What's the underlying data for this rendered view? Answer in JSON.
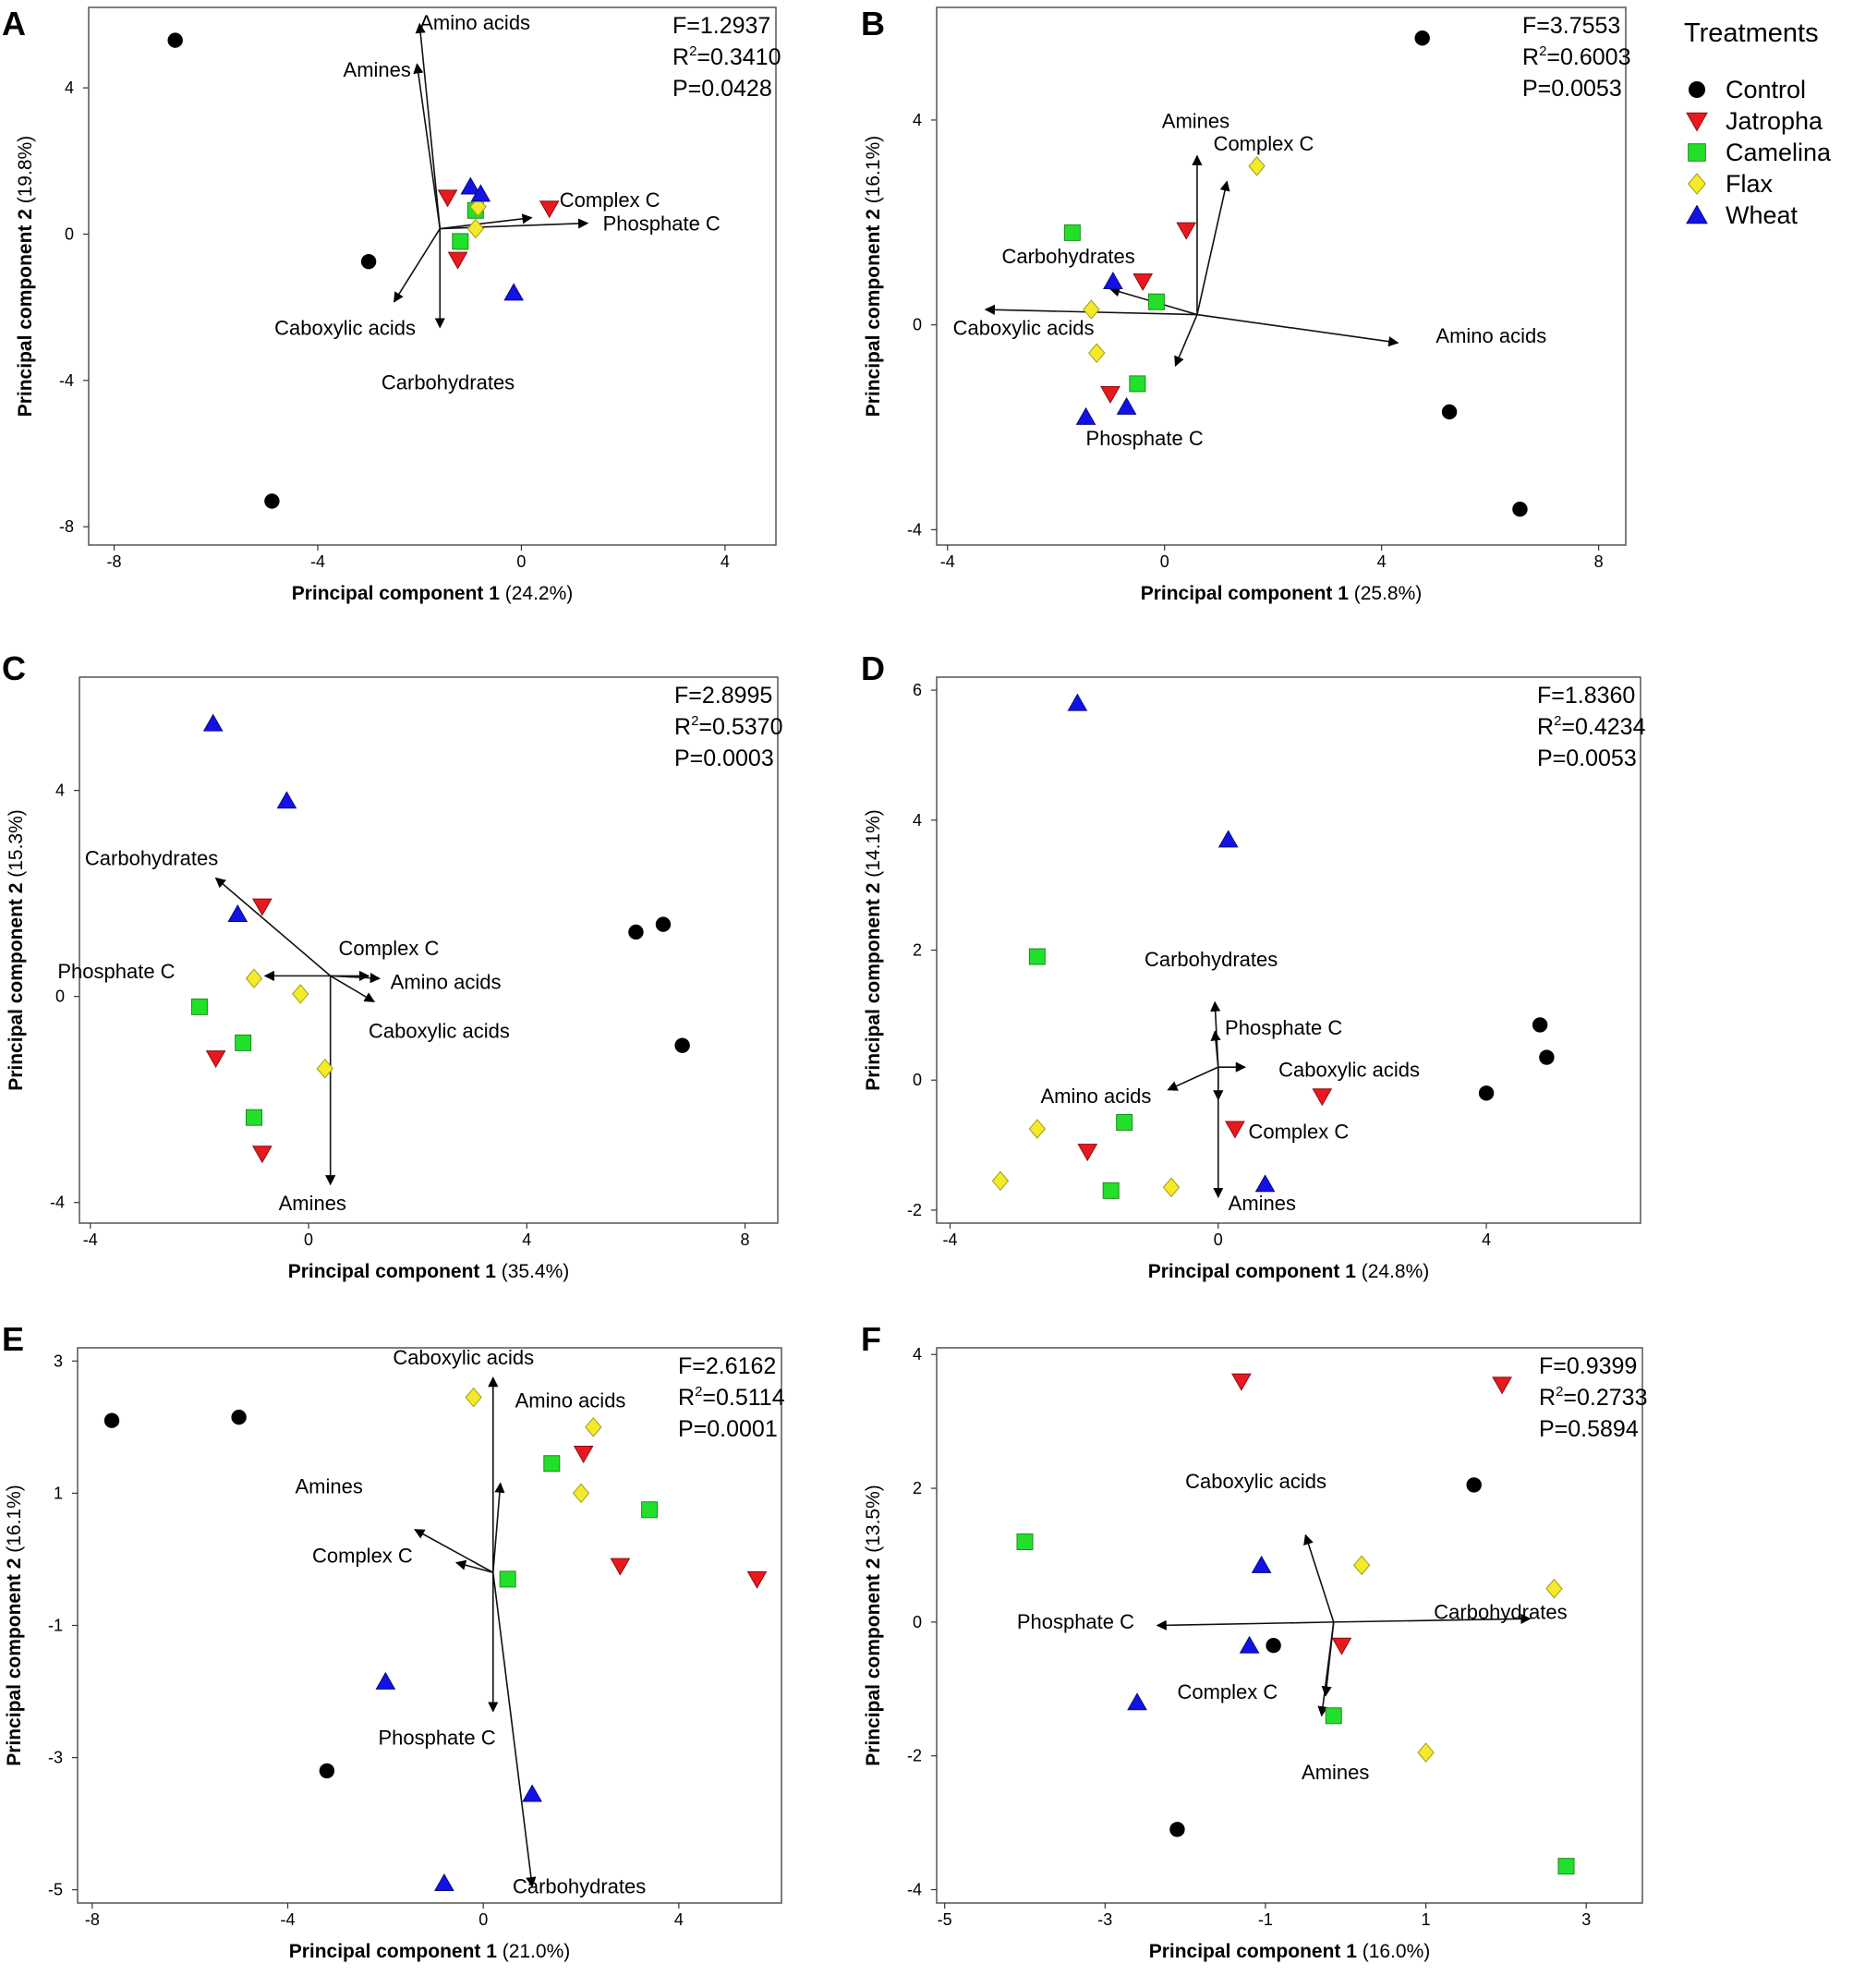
{
  "legend": {
    "title": "Treatments",
    "items": [
      {
        "name": "Control",
        "color": "#000000",
        "marker": "circle"
      },
      {
        "name": "Jatropha",
        "color": "#e8191e",
        "marker": "triangle-down"
      },
      {
        "name": "Camelina",
        "color": "#22e02a",
        "marker": "square"
      },
      {
        "name": "Flax",
        "color": "#f4ea2a",
        "marker": "diamond"
      },
      {
        "name": "Wheat",
        "color": "#1212e6",
        "marker": "triangle-up"
      }
    ]
  },
  "chart_data": [
    {
      "panel": "A",
      "type": "scatter",
      "xlabel": "Principal component 1",
      "xlabel_pct": "(24.2%)",
      "ylabel": "Principal component 2",
      "ylabel_pct": "(19.8%)",
      "xlim": [
        -8.5,
        5
      ],
      "ylim": [
        -8.5,
        6.2
      ],
      "xticks": [
        -8,
        -4,
        0,
        4
      ],
      "yticks": [
        -8,
        -4,
        0,
        4
      ],
      "stats": {
        "F": "F=1.2937",
        "R2_prefix": "R",
        "R2_value": "=0.3410",
        "P": "P=0.0428"
      },
      "points": [
        {
          "group": "Control",
          "x": -6.8,
          "y": 5.3
        },
        {
          "group": "Control",
          "x": -3.0,
          "y": -0.75
        },
        {
          "group": "Control",
          "x": -4.9,
          "y": -7.3
        },
        {
          "group": "Jatropha",
          "x": -1.45,
          "y": 1.0
        },
        {
          "group": "Jatropha",
          "x": 0.55,
          "y": 0.7
        },
        {
          "group": "Jatropha",
          "x": -1.25,
          "y": -0.7
        },
        {
          "group": "Camelina",
          "x": -0.9,
          "y": 0.65
        },
        {
          "group": "Camelina",
          "x": -1.2,
          "y": -0.2
        },
        {
          "group": "Flax",
          "x": -0.85,
          "y": 0.75
        },
        {
          "group": "Flax",
          "x": -0.9,
          "y": 0.15
        },
        {
          "group": "Wheat",
          "x": -1.0,
          "y": 1.3
        },
        {
          "group": "Wheat",
          "x": -0.8,
          "y": 1.1
        },
        {
          "group": "Wheat",
          "x": -0.15,
          "y": -1.6
        }
      ],
      "origin": [
        -1.6,
        0.15
      ],
      "vectors": [
        {
          "label": "Amino acids",
          "dx": -0.4,
          "dy": 5.6,
          "lx": -2.0,
          "ly": 5.6
        },
        {
          "label": "Amines",
          "dx": -0.45,
          "dy": 4.5,
          "lx": -3.5,
          "ly": 4.3
        },
        {
          "label": "Complex C",
          "dx": 1.8,
          "dy": 0.3,
          "lx": 0.75,
          "ly": 0.75
        },
        {
          "label": "Phosphate C",
          "dx": 2.9,
          "dy": 0.15,
          "lx": 1.6,
          "ly": 0.1
        },
        {
          "label": "Caboxylic acids",
          "dx": -0.9,
          "dy": -2.0,
          "lx": -4.85,
          "ly": -2.75
        },
        {
          "label": "Carbohydrates",
          "dx": 0.0,
          "dy": -2.7,
          "lx": -2.75,
          "ly": -4.25
        }
      ]
    },
    {
      "panel": "B",
      "type": "scatter",
      "xlabel": "Principal component 1",
      "xlabel_pct": "(25.8%)",
      "ylabel": "Principal component 2",
      "ylabel_pct": "(16.1%)",
      "xlim": [
        -4.2,
        8.5
      ],
      "ylim": [
        -4.3,
        6.2
      ],
      "xticks": [
        -4,
        0,
        4,
        8
      ],
      "yticks": [
        -4,
        0,
        4
      ],
      "stats": {
        "F": "F=3.7553",
        "R2_prefix": "R",
        "R2_value": "=0.6003",
        "P": "P=0.0053"
      },
      "points": [
        {
          "group": "Control",
          "x": 4.75,
          "y": 5.6
        },
        {
          "group": "Control",
          "x": 5.25,
          "y": -1.7
        },
        {
          "group": "Control",
          "x": 6.55,
          "y": -3.6
        },
        {
          "group": "Jatropha",
          "x": 0.4,
          "y": 1.85
        },
        {
          "group": "Jatropha",
          "x": -0.4,
          "y": 0.85
        },
        {
          "group": "Jatropha",
          "x": -1.0,
          "y": -1.35
        },
        {
          "group": "Camelina",
          "x": -1.7,
          "y": 1.8
        },
        {
          "group": "Camelina",
          "x": -0.15,
          "y": 0.45
        },
        {
          "group": "Camelina",
          "x": -0.5,
          "y": -1.15
        },
        {
          "group": "Flax",
          "x": 1.7,
          "y": 3.1
        },
        {
          "group": "Flax",
          "x": -1.35,
          "y": 0.3
        },
        {
          "group": "Flax",
          "x": -1.25,
          "y": -0.55
        },
        {
          "group": "Wheat",
          "x": -0.95,
          "y": 0.85
        },
        {
          "group": "Wheat",
          "x": -0.7,
          "y": -1.6
        },
        {
          "group": "Wheat",
          "x": -1.45,
          "y": -1.8
        }
      ],
      "origin": [
        0.6,
        0.2
      ],
      "vectors": [
        {
          "label": "Amines",
          "dx": 0.0,
          "dy": 3.1,
          "lx": -0.05,
          "ly": 3.85
        },
        {
          "label": "Complex C",
          "dx": 0.55,
          "dy": 2.6,
          "lx": 0.9,
          "ly": 3.4
        },
        {
          "label": "Carbohydrates",
          "dx": -1.6,
          "dy": 0.5,
          "lx": -3.0,
          "ly": 1.2
        },
        {
          "label": "Caboxylic acids",
          "dx": -3.9,
          "dy": 0.1,
          "lx": -3.9,
          "ly": -0.2
        },
        {
          "label": "Amino acids",
          "dx": 3.7,
          "dy": -0.55,
          "lx": 5.0,
          "ly": -0.35
        },
        {
          "label": "Phosphate C",
          "dx": -0.4,
          "dy": -1.0,
          "lx": -1.45,
          "ly": -2.35
        }
      ]
    },
    {
      "panel": "C",
      "type": "scatter",
      "xlabel": "Principal component 1",
      "xlabel_pct": "(35.4%)",
      "ylabel": "Principal component 2",
      "ylabel_pct": "(15.3%)",
      "xlim": [
        -4.2,
        8.6
      ],
      "ylim": [
        -4.4,
        6.2
      ],
      "xticks": [
        -4,
        0,
        4,
        8
      ],
      "yticks": [
        -4,
        0,
        4
      ],
      "stats": {
        "F": "F=2.8995",
        "R2_prefix": "R",
        "R2_value": "=0.5370",
        "P": "P=0.0003"
      },
      "points": [
        {
          "group": "Control",
          "x": 6.0,
          "y": 1.25
        },
        {
          "group": "Control",
          "x": 6.5,
          "y": 1.4
        },
        {
          "group": "Control",
          "x": 6.85,
          "y": -0.95
        },
        {
          "group": "Jatropha",
          "x": -0.85,
          "y": 1.75
        },
        {
          "group": "Jatropha",
          "x": -1.7,
          "y": -1.2
        },
        {
          "group": "Jatropha",
          "x": -0.85,
          "y": -3.05
        },
        {
          "group": "Camelina",
          "x": -2.0,
          "y": -0.2
        },
        {
          "group": "Camelina",
          "x": -1.2,
          "y": -0.9
        },
        {
          "group": "Camelina",
          "x": -1.0,
          "y": -2.35
        },
        {
          "group": "Flax",
          "x": -1.0,
          "y": 0.35
        },
        {
          "group": "Flax",
          "x": -0.15,
          "y": 0.05
        },
        {
          "group": "Flax",
          "x": 0.3,
          "y": -1.4
        },
        {
          "group": "Wheat",
          "x": -1.75,
          "y": 5.3
        },
        {
          "group": "Wheat",
          "x": -0.4,
          "y": 3.8
        },
        {
          "group": "Wheat",
          "x": -1.3,
          "y": 1.6
        }
      ],
      "origin": [
        0.4,
        0.4
      ],
      "vectors": [
        {
          "label": "Carbohydrates",
          "dx": -2.1,
          "dy": 1.9,
          "lx": -4.1,
          "ly": 2.55
        },
        {
          "label": "Complex C",
          "dx": 0.7,
          "dy": 0.0,
          "lx": 0.55,
          "ly": 0.8
        },
        {
          "label": "Phosphate C",
          "dx": -1.2,
          "dy": 0.0,
          "lx": -4.6,
          "ly": 0.35
        },
        {
          "label": "Amino acids",
          "dx": 0.9,
          "dy": -0.05,
          "lx": 1.5,
          "ly": 0.15
        },
        {
          "label": "Caboxylic acids",
          "dx": 0.8,
          "dy": -0.5,
          "lx": 1.1,
          "ly": -0.8
        },
        {
          "label": "Amines",
          "dx": 0.0,
          "dy": -4.05,
          "lx": -0.55,
          "ly": -4.15
        }
      ]
    },
    {
      "panel": "D",
      "type": "scatter",
      "xlabel": "Principal component 1",
      "xlabel_pct": "(24.8%)",
      "ylabel": "Principal component 2",
      "ylabel_pct": "(14.1%)",
      "xlim": [
        -4.2,
        6.3
      ],
      "ylim": [
        -2.2,
        6.2
      ],
      "xticks": [
        -4,
        0,
        4
      ],
      "yticks": [
        -2,
        0,
        2,
        4,
        6
      ],
      "stats": {
        "F": "F=1.8360",
        "R2_prefix": "R",
        "R2_value": "=0.4234",
        "P": "P=0.0053"
      },
      "points": [
        {
          "group": "Control",
          "x": 4.8,
          "y": 0.85
        },
        {
          "group": "Control",
          "x": 4.9,
          "y": 0.35
        },
        {
          "group": "Control",
          "x": 4.0,
          "y": -0.2
        },
        {
          "group": "Jatropha",
          "x": 1.55,
          "y": -0.25
        },
        {
          "group": "Jatropha",
          "x": 0.25,
          "y": -0.75
        },
        {
          "group": "Jatropha",
          "x": -1.95,
          "y": -1.1
        },
        {
          "group": "Camelina",
          "x": -2.7,
          "y": 1.9
        },
        {
          "group": "Camelina",
          "x": -1.4,
          "y": -0.65
        },
        {
          "group": "Camelina",
          "x": -1.6,
          "y": -1.7
        },
        {
          "group": "Flax",
          "x": -2.7,
          "y": -0.75
        },
        {
          "group": "Flax",
          "x": -3.25,
          "y": -1.55
        },
        {
          "group": "Flax",
          "x": -0.7,
          "y": -1.65
        },
        {
          "group": "Wheat",
          "x": -2.1,
          "y": 5.8
        },
        {
          "group": "Wheat",
          "x": 0.15,
          "y": 3.7
        },
        {
          "group": "Wheat",
          "x": 0.7,
          "y": -1.6
        }
      ],
      "origin": [
        0.0,
        0.2
      ],
      "vectors": [
        {
          "label": "Carbohydrates",
          "dx": -0.05,
          "dy": 1.0,
          "lx": -1.1,
          "ly": 1.75
        },
        {
          "label": "Phosphate C",
          "dx": -0.05,
          "dy": 0.55,
          "lx": 0.1,
          "ly": 0.7
        },
        {
          "label": "Caboxylic acids",
          "dx": 0.4,
          "dy": 0.0,
          "lx": 0.9,
          "ly": 0.05
        },
        {
          "label": "Amino acids",
          "dx": -0.75,
          "dy": -0.35,
          "lx": -2.65,
          "ly": -0.35
        },
        {
          "label": "Complex C",
          "dx": 0.0,
          "dy": -0.5,
          "lx": 0.45,
          "ly": -0.9
        },
        {
          "label": "Amines",
          "dx": 0.0,
          "dy": -2.0,
          "lx": 0.15,
          "ly": -2.0
        }
      ]
    },
    {
      "panel": "E",
      "type": "scatter",
      "xlabel": "Principal component 1",
      "xlabel_pct": "(21.0%)",
      "ylabel": "Principal component 2",
      "ylabel_pct": "(16.1%)",
      "xlim": [
        -8.3,
        6.1
      ],
      "ylim": [
        -5.2,
        3.2
      ],
      "xticks": [
        -8,
        -4,
        0,
        4
      ],
      "yticks": [
        -5,
        -3,
        -1,
        1,
        3
      ],
      "stats": {
        "F": "F=2.6162",
        "R2_prefix": "R",
        "R2_value": "=0.5114",
        "P": "P=0.0001"
      },
      "points": [
        {
          "group": "Control",
          "x": -7.6,
          "y": 2.1
        },
        {
          "group": "Control",
          "x": -5.0,
          "y": 2.15
        },
        {
          "group": "Control",
          "x": -3.2,
          "y": -3.2
        },
        {
          "group": "Jatropha",
          "x": 2.05,
          "y": 1.6
        },
        {
          "group": "Jatropha",
          "x": 2.8,
          "y": -0.1
        },
        {
          "group": "Jatropha",
          "x": 5.6,
          "y": -0.3
        },
        {
          "group": "Camelina",
          "x": 1.4,
          "y": 1.45
        },
        {
          "group": "Camelina",
          "x": 3.4,
          "y": 0.75
        },
        {
          "group": "Camelina",
          "x": 0.5,
          "y": -0.3
        },
        {
          "group": "Flax",
          "x": -0.2,
          "y": 2.45
        },
        {
          "group": "Flax",
          "x": 2.25,
          "y": 2.0
        },
        {
          "group": "Flax",
          "x": 2.0,
          "y": 1.0
        },
        {
          "group": "Wheat",
          "x": -2.0,
          "y": -1.85
        },
        {
          "group": "Wheat",
          "x": 1.0,
          "y": -3.55
        },
        {
          "group": "Wheat",
          "x": -0.8,
          "y": -4.9
        }
      ],
      "origin": [
        0.2,
        -0.2
      ],
      "vectors": [
        {
          "label": "Caboxylic acids",
          "dx": 0.0,
          "dy": 2.95,
          "lx": -1.85,
          "ly": 2.95
        },
        {
          "label": "Amino acids",
          "dx": 0.15,
          "dy": 1.35,
          "lx": 0.65,
          "ly": 2.3
        },
        {
          "label": "Amines",
          "dx": -1.6,
          "dy": 0.65,
          "lx": -3.85,
          "ly": 1.0
        },
        {
          "label": "Complex C",
          "dx": -0.75,
          "dy": 0.15,
          "lx": -3.5,
          "ly": -0.05
        },
        {
          "label": "Phosphate C",
          "dx": 0.0,
          "dy": -2.1,
          "lx": -2.15,
          "ly": -2.8
        },
        {
          "label": "Carbohydrates",
          "dx": 0.8,
          "dy": -4.75,
          "lx": 0.6,
          "ly": -5.05
        }
      ]
    },
    {
      "panel": "F",
      "type": "scatter",
      "xlabel": "Principal component 1",
      "xlabel_pct": "(16.0%)",
      "ylabel": "Principal component 2",
      "ylabel_pct": "(13.5%)",
      "xlim": [
        -5.1,
        3.7
      ],
      "ylim": [
        -4.2,
        4.1
      ],
      "xticks": [
        -5,
        -3,
        -1,
        1,
        3
      ],
      "yticks": [
        -4,
        -2,
        0,
        2,
        4
      ],
      "stats": {
        "F": "F=0.9399",
        "R2_prefix": "R",
        "R2_value": "=0.2733",
        "P": "P=0.5894"
      },
      "points": [
        {
          "group": "Control",
          "x": 1.6,
          "y": 2.05
        },
        {
          "group": "Control",
          "x": -0.9,
          "y": -0.35
        },
        {
          "group": "Control",
          "x": -2.1,
          "y": -3.1
        },
        {
          "group": "Jatropha",
          "x": -1.3,
          "y": 3.6
        },
        {
          "group": "Jatropha",
          "x": 1.95,
          "y": 3.55
        },
        {
          "group": "Jatropha",
          "x": -0.05,
          "y": -0.35
        },
        {
          "group": "Camelina",
          "x": -4.0,
          "y": 1.2
        },
        {
          "group": "Camelina",
          "x": -0.15,
          "y": -1.4
        },
        {
          "group": "Camelina",
          "x": 2.75,
          "y": -3.65
        },
        {
          "group": "Flax",
          "x": 0.2,
          "y": 0.85
        },
        {
          "group": "Flax",
          "x": 2.6,
          "y": 0.5
        },
        {
          "group": "Flax",
          "x": 1.0,
          "y": -1.95
        },
        {
          "group": "Wheat",
          "x": -1.05,
          "y": 0.85
        },
        {
          "group": "Wheat",
          "x": -1.2,
          "y": -0.35
        },
        {
          "group": "Wheat",
          "x": -2.6,
          "y": -1.2
        }
      ],
      "origin": [
        -0.15,
        0.0
      ],
      "vectors": [
        {
          "label": "Caboxylic acids",
          "dx": -0.35,
          "dy": 1.3,
          "lx": -2.0,
          "ly": 2.0
        },
        {
          "label": "Carbohydrates",
          "dx": 2.45,
          "dy": 0.05,
          "lx": 1.1,
          "ly": 0.05
        },
        {
          "label": "Phosphate C",
          "dx": -2.2,
          "dy": -0.05,
          "lx": -4.1,
          "ly": -0.1
        },
        {
          "label": "Complex C",
          "dx": -0.1,
          "dy": -1.1,
          "lx": -2.1,
          "ly": -1.15
        },
        {
          "label": "Amines",
          "dx": -0.15,
          "dy": -1.4,
          "lx": -0.55,
          "ly": -2.35
        }
      ]
    }
  ]
}
